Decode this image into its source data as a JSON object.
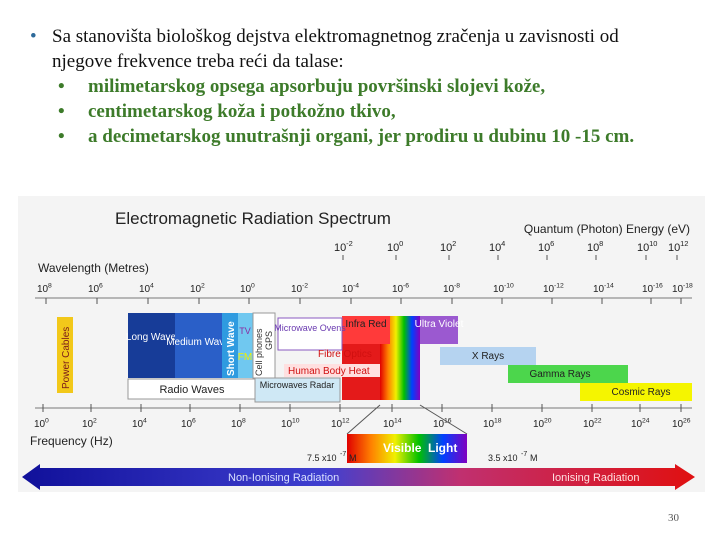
{
  "bullet": {
    "text": "Sa stanovišta biološkog dejstva elektromagnetnog zračenja u zavisnosti od njegove frekvence treba reći da talase:",
    "items": [
      "milimetarskog opsega apsorbuju površinski slojevi kože,",
      "centimetarskog koža i potkožno tkivo,",
      "a decimetarskog unutrašnji organi, jer prodiru u dubinu 10 -15 cm."
    ]
  },
  "figure": {
    "title": "Electromagnetic Radiation Spectrum",
    "energy_label": "Quantum (Photon) Energy (eV)",
    "energy_ticks": [
      {
        "base": "10",
        "exp": "-2"
      },
      {
        "base": "10",
        "exp": "0"
      },
      {
        "base": "10",
        "exp": "2"
      },
      {
        "base": "10",
        "exp": "4"
      },
      {
        "base": "10",
        "exp": "6"
      },
      {
        "base": "10",
        "exp": "8"
      },
      {
        "base": "10",
        "exp": "10"
      },
      {
        "base": "10",
        "exp": "12"
      }
    ],
    "wavelength_label": "Wavelength (Metres)",
    "wavelength_ticks": [
      {
        "base": "10",
        "exp": "8"
      },
      {
        "base": "10",
        "exp": "6"
      },
      {
        "base": "10",
        "exp": "4"
      },
      {
        "base": "10",
        "exp": "2"
      },
      {
        "base": "10",
        "exp": "0"
      },
      {
        "base": "10",
        "exp": "-2"
      },
      {
        "base": "10",
        "exp": "-4"
      },
      {
        "base": "10",
        "exp": "-6"
      },
      {
        "base": "10",
        "exp": "-8"
      },
      {
        "base": "10",
        "exp": "-10"
      },
      {
        "base": "10",
        "exp": "-12"
      },
      {
        "base": "10",
        "exp": "-14"
      },
      {
        "base": "10",
        "exp": "-16"
      },
      {
        "base": "10",
        "exp": "-18"
      }
    ],
    "frequency_label": "Frequency (Hz)",
    "frequency_ticks": [
      {
        "base": "10",
        "exp": "0"
      },
      {
        "base": "10",
        "exp": "2"
      },
      {
        "base": "10",
        "exp": "4"
      },
      {
        "base": "10",
        "exp": "6"
      },
      {
        "base": "10",
        "exp": "8"
      },
      {
        "base": "10",
        "exp": "10"
      },
      {
        "base": "10",
        "exp": "12"
      },
      {
        "base": "10",
        "exp": "14"
      },
      {
        "base": "10",
        "exp": "16"
      },
      {
        "base": "10",
        "exp": "18"
      },
      {
        "base": "10",
        "exp": "20"
      },
      {
        "base": "10",
        "exp": "22"
      },
      {
        "base": "10",
        "exp": "24"
      },
      {
        "base": "10",
        "exp": "26"
      }
    ],
    "bands": {
      "power": "Power Cables",
      "long": "Long Wave",
      "medium": "Medium Wave",
      "short": "Short Wave",
      "tv": "TV",
      "fm": "FM",
      "cell": "Cell phones",
      "gps": "GPS",
      "oven": "Microwave Ovens",
      "ir": "Infra Red",
      "uv": "Ultra Violet",
      "fibre": "Fibre Optics",
      "body": "Human Body Heat",
      "xray": "X Rays",
      "gamma": "Gamma Rays",
      "cosmic": "Cosmic Rays",
      "radio": "Radio Waves",
      "radar": "Microwaves Radar"
    },
    "visible": "Visible",
    "light": "Light",
    "red_limit": {
      "text": "7.5 x10",
      "exp": "-7",
      "unit": "M"
    },
    "violet_limit": {
      "text": "3.5 x10",
      "exp": "-7",
      "unit": "M"
    },
    "non_ionising": "Non-Ionising Radiation",
    "ionising": "Ionising Radiation"
  },
  "page_number": "30"
}
